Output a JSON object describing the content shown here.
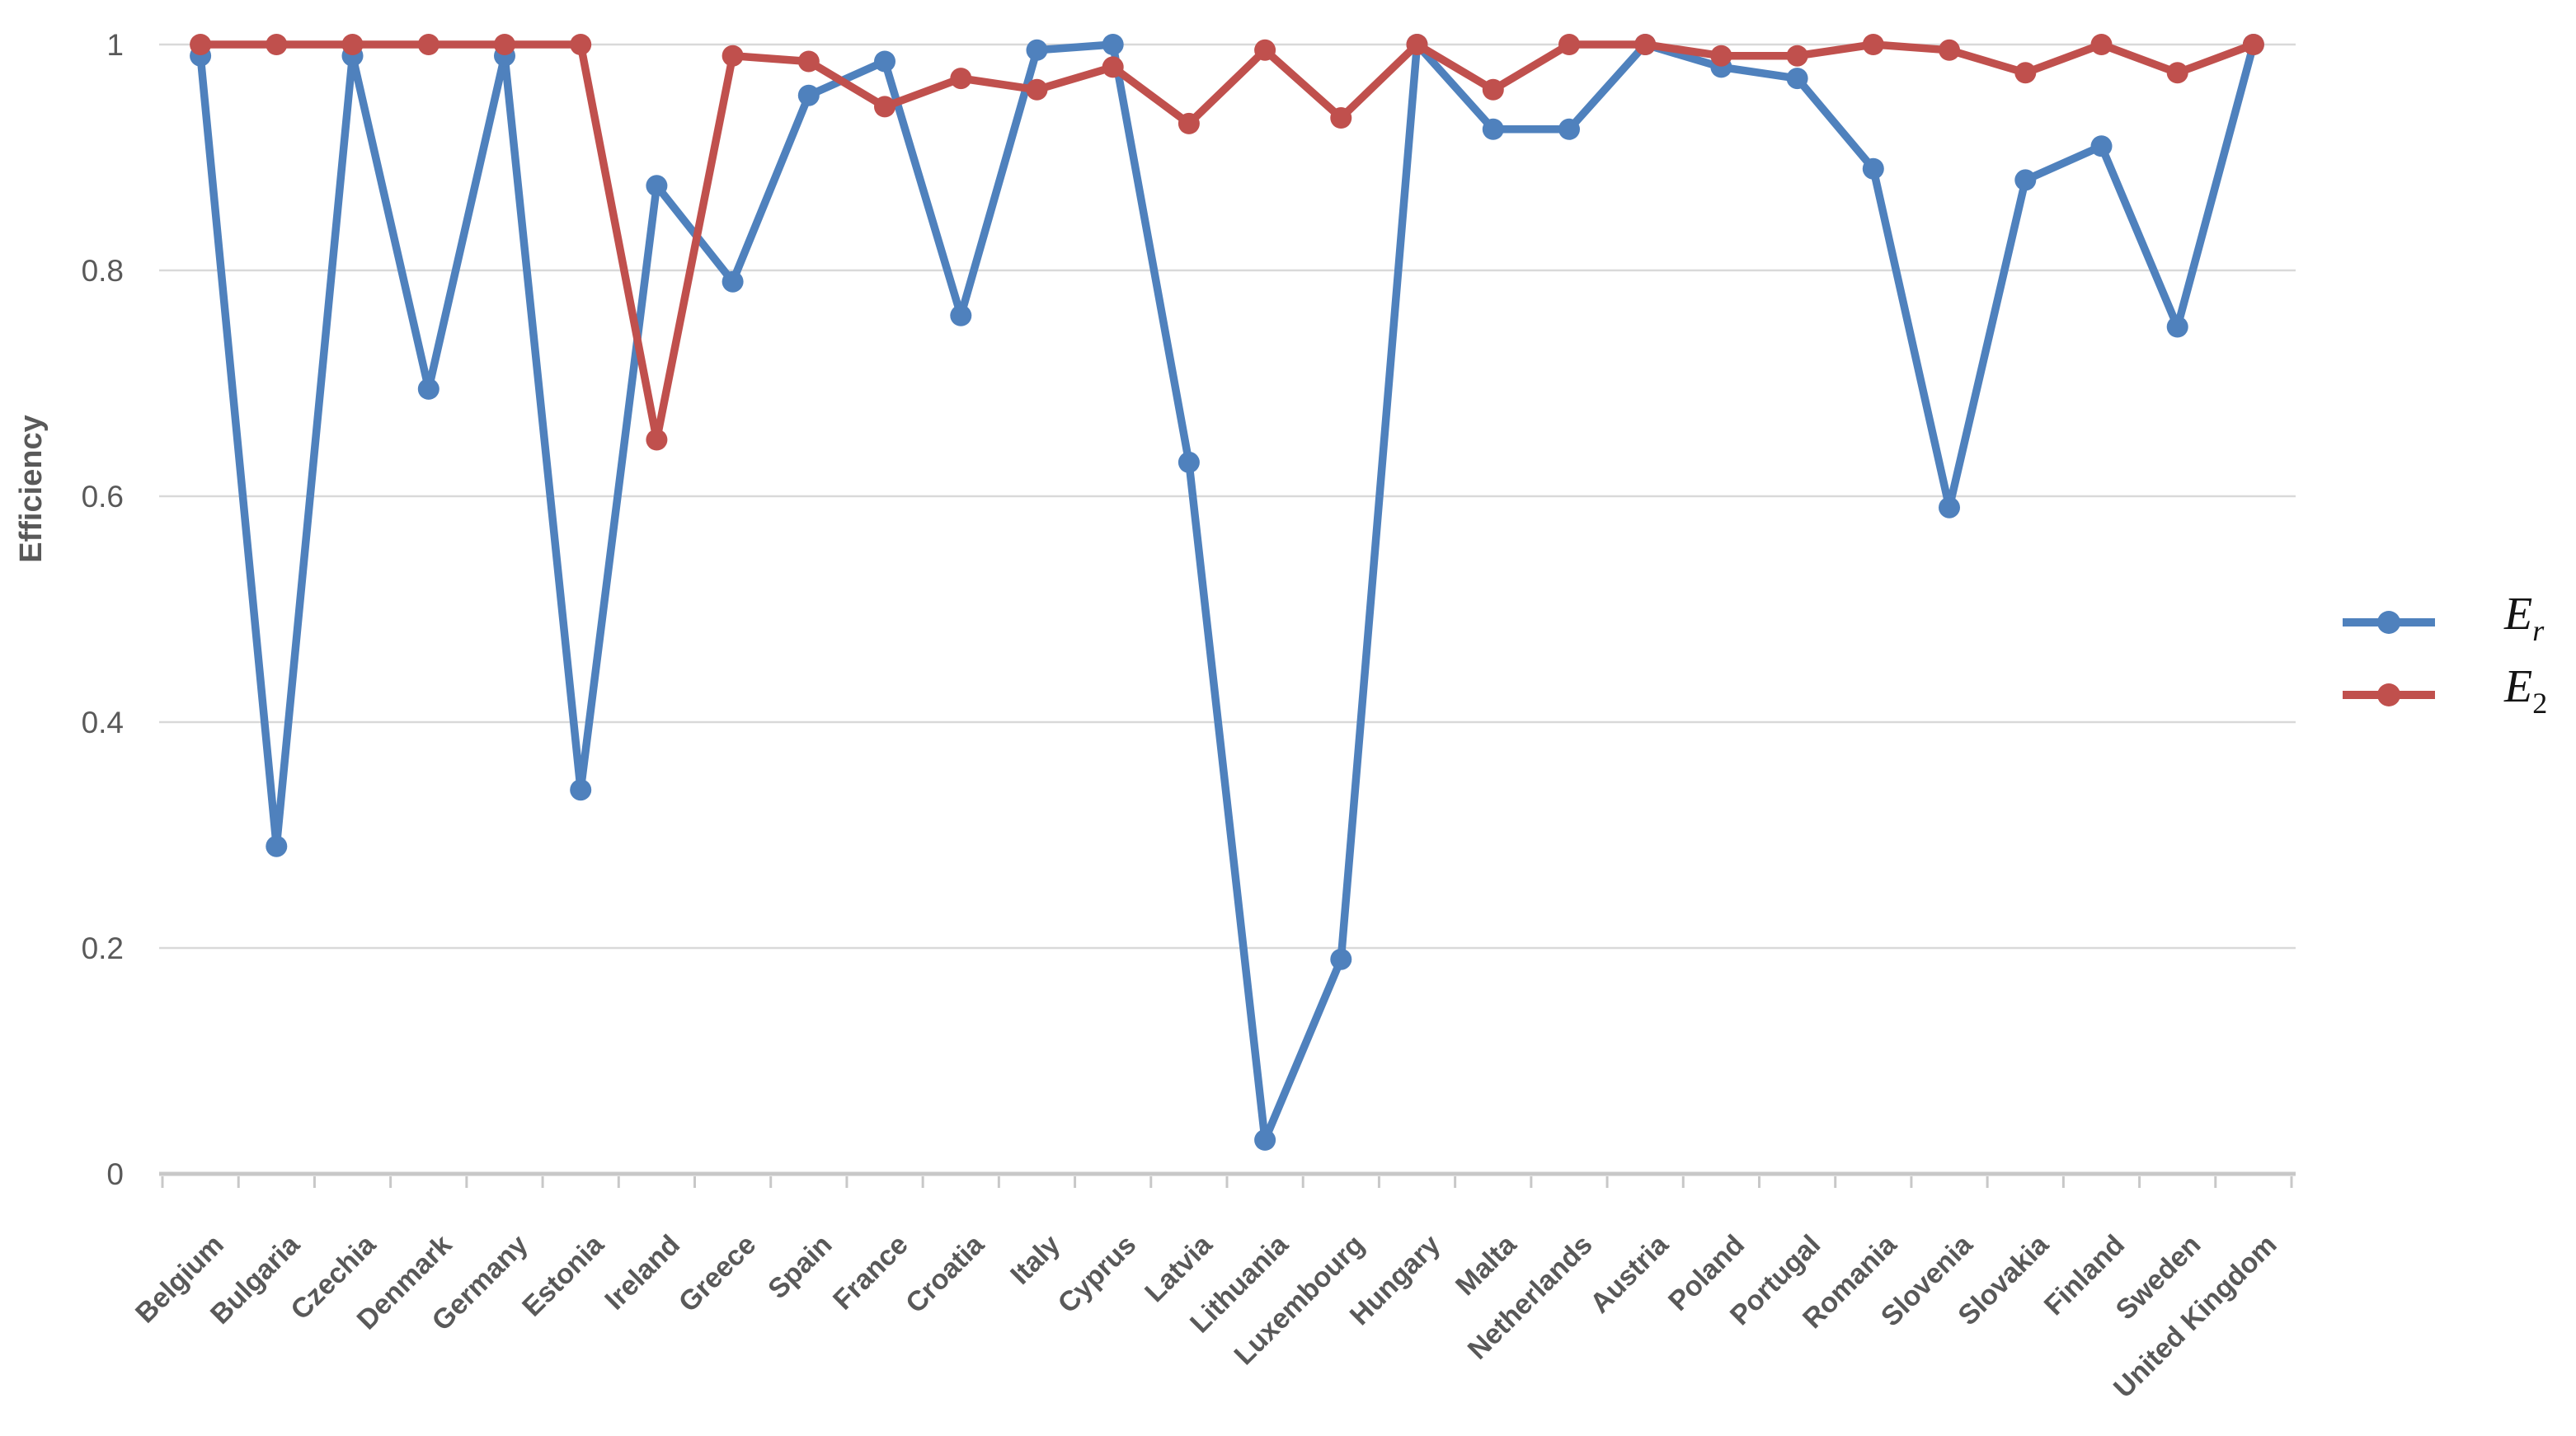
{
  "chart_data": {
    "type": "line",
    "title": "",
    "ylabel": "Efficiency",
    "xlabel": "",
    "ylim": [
      0,
      1
    ],
    "yticks": [
      "0",
      "0.2",
      "0.4",
      "0.6",
      "0.8",
      "1"
    ],
    "grid": "horizontal",
    "legend_position": "right-middle",
    "categories": [
      "Belgium",
      "Bulgaria",
      "Czechia",
      "Denmark",
      "Germany",
      "Estonia",
      "Ireland",
      "Greece",
      "Spain",
      "France",
      "Croatia",
      "Italy",
      "Cyprus",
      "Latvia",
      "Lithuania",
      "Luxembourg",
      "Hungary",
      "Malta",
      "Netherlands",
      "Austria",
      "Poland",
      "Portugal",
      "Romania",
      "Slovenia",
      "Slovakia",
      "Finland",
      "Sweden",
      "United Kingdom"
    ],
    "series": [
      {
        "name": "Er",
        "label_base": "E",
        "label_sub": "r",
        "color": "#4F81BD",
        "values": [
          0.99,
          0.29,
          0.99,
          0.695,
          0.99,
          0.34,
          0.875,
          0.79,
          0.955,
          0.985,
          0.76,
          0.995,
          1.0,
          0.63,
          0.03,
          0.19,
          1.0,
          0.925,
          0.925,
          1.0,
          0.98,
          0.97,
          0.89,
          0.59,
          0.88,
          0.91,
          0.75,
          1.0
        ]
      },
      {
        "name": "E2",
        "label_base": "E",
        "label_sub": "2",
        "color": "#C0504D",
        "values": [
          1.0,
          1.0,
          1.0,
          1.0,
          1.0,
          1.0,
          0.65,
          0.99,
          0.985,
          0.945,
          0.97,
          0.96,
          0.98,
          0.93,
          0.995,
          0.935,
          1.0,
          0.96,
          1.0,
          1.0,
          0.99,
          0.99,
          1.0,
          0.995,
          0.975,
          1.0,
          0.975,
          1.0
        ]
      }
    ],
    "colors": {
      "gridline": "#D9D9D9",
      "axis_line": "#C8C8C8",
      "tick_text": "#595959",
      "legend_text": "#141414",
      "background": "#FFFFFF"
    }
  }
}
